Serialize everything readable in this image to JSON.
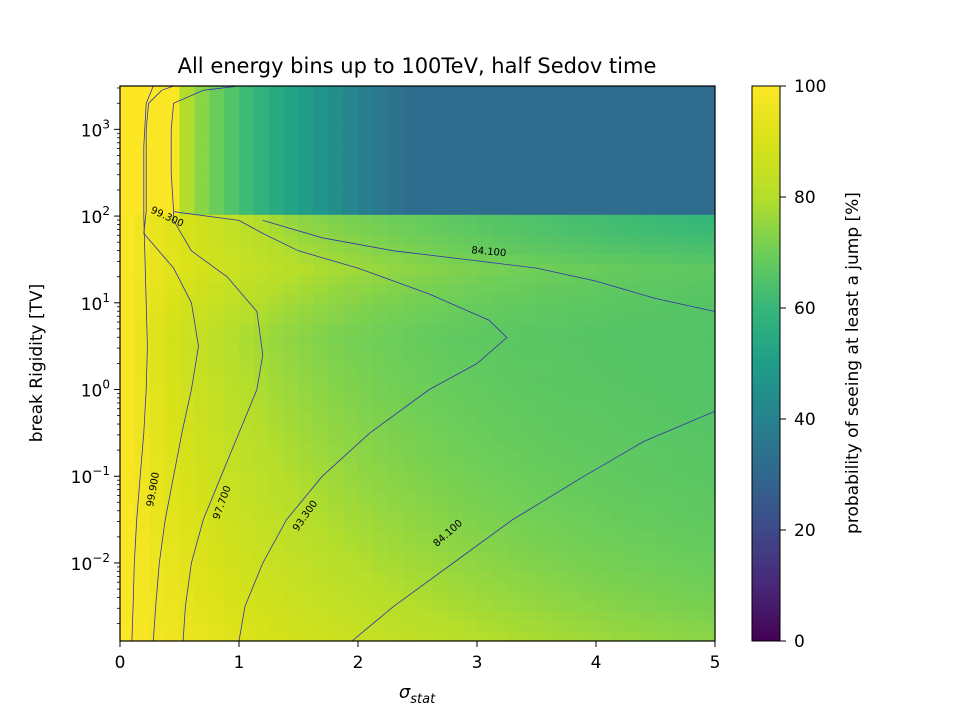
{
  "chart_data": {
    "type": "heatmap",
    "title": "All energy bins up to 100TeV, half Sedov time",
    "xlabel_main": "σ",
    "xlabel_sub": "stat",
    "ylabel": "break Rigidity [TV]",
    "xlim": [
      0,
      5
    ],
    "x_ticks": [
      0,
      1,
      2,
      3,
      4,
      5
    ],
    "x_tick_labels": [
      "0",
      "1",
      "2",
      "3",
      "4",
      "5"
    ],
    "y_scale": "log",
    "ylim_log10": [
      -2.9,
      3.5
    ],
    "y_ticks": [
      {
        "base": "10",
        "exp": "−2",
        "log10": -2
      },
      {
        "base": "10",
        "exp": "−1",
        "log10": -1
      },
      {
        "base": "10",
        "exp": "0",
        "log10": 0
      },
      {
        "base": "10",
        "exp": "1",
        "log10": 1
      },
      {
        "base": "10",
        "exp": "2",
        "log10": 2
      },
      {
        "base": "10",
        "exp": "3",
        "log10": 3
      }
    ],
    "colormap": "viridis",
    "colorbar": {
      "label": "probability of seeing at least a jump [%]",
      "range": [
        0,
        100
      ],
      "ticks": [
        "0",
        "20",
        "40",
        "60",
        "80",
        "100"
      ]
    },
    "contour_color": "#3333aa",
    "contour_levels": [
      "99.900",
      "99.300",
      "97.700",
      "93.300",
      "84.100"
    ],
    "contours": [
      {
        "level": 99.9,
        "label": "99.900",
        "points": [
          [
            0.1,
            -2.9
          ],
          [
            0.11,
            -2.5
          ],
          [
            0.12,
            -2.0
          ],
          [
            0.14,
            -1.5
          ],
          [
            0.17,
            -1.0
          ],
          [
            0.2,
            -0.5
          ],
          [
            0.22,
            0.0
          ],
          [
            0.23,
            0.5
          ],
          [
            0.22,
            1.0
          ],
          [
            0.21,
            1.5
          ],
          [
            0.2,
            2.0
          ],
          [
            0.2,
            2.8
          ],
          [
            0.22,
            3.3
          ],
          [
            0.28,
            3.5
          ]
        ]
      },
      {
        "level": 99.3,
        "label": "99.300",
        "points": [
          [
            0.28,
            -2.9
          ],
          [
            0.3,
            -2.5
          ],
          [
            0.33,
            -2.0
          ],
          [
            0.38,
            -1.5
          ],
          [
            0.45,
            -1.0
          ],
          [
            0.52,
            -0.5
          ],
          [
            0.6,
            0.0
          ],
          [
            0.66,
            0.5
          ],
          [
            0.6,
            1.0
          ],
          [
            0.45,
            1.4
          ],
          [
            0.2,
            1.8
          ],
          [
            0.22,
            2.05
          ],
          [
            0.22,
            2.5
          ],
          [
            0.22,
            3.0
          ],
          [
            0.24,
            3.3
          ],
          [
            0.35,
            3.45
          ],
          [
            0.45,
            3.5
          ]
        ]
      },
      {
        "level": 97.7,
        "label": "97.700",
        "points": [
          [
            0.53,
            -2.9
          ],
          [
            0.55,
            -2.5
          ],
          [
            0.6,
            -2.0
          ],
          [
            0.7,
            -1.5
          ],
          [
            0.85,
            -1.0
          ],
          [
            1.0,
            -0.5
          ],
          [
            1.15,
            0.0
          ],
          [
            1.2,
            0.4
          ],
          [
            1.15,
            0.9
          ],
          [
            0.9,
            1.3
          ],
          [
            0.6,
            1.6
          ],
          [
            0.45,
            1.95
          ],
          [
            0.45,
            2.05
          ],
          [
            0.43,
            2.5
          ],
          [
            0.43,
            3.0
          ],
          [
            0.45,
            3.3
          ],
          [
            0.7,
            3.45
          ],
          [
            1.0,
            3.5
          ]
        ]
      },
      {
        "level": 93.3,
        "label": "93.300",
        "points": [
          [
            1.0,
            -2.9
          ],
          [
            1.05,
            -2.5
          ],
          [
            1.2,
            -2.0
          ],
          [
            1.4,
            -1.5
          ],
          [
            1.7,
            -1.0
          ],
          [
            2.1,
            -0.5
          ],
          [
            2.6,
            0.0
          ],
          [
            3.0,
            0.3
          ],
          [
            3.25,
            0.6
          ],
          [
            3.1,
            0.8
          ],
          [
            2.6,
            1.1
          ],
          [
            2.0,
            1.4
          ],
          [
            1.5,
            1.6
          ],
          [
            1.2,
            1.8
          ],
          [
            1.0,
            1.95
          ],
          [
            0.45,
            2.05
          ]
        ]
      },
      {
        "level": 84.1,
        "label": "84.100",
        "points": [
          [
            1.95,
            -2.9
          ],
          [
            2.3,
            -2.5
          ],
          [
            2.8,
            -2.0
          ],
          [
            3.3,
            -1.5
          ],
          [
            3.9,
            -1.0
          ],
          [
            4.4,
            -0.6
          ],
          [
            5.0,
            -0.25
          ]
        ]
      },
      {
        "level": 84.1,
        "label": "84.100",
        "points": [
          [
            1.2,
            1.95
          ],
          [
            1.7,
            1.75
          ],
          [
            2.3,
            1.6
          ],
          [
            2.9,
            1.5
          ],
          [
            3.5,
            1.4
          ],
          [
            4.0,
            1.25
          ],
          [
            4.5,
            1.05
          ],
          [
            5.0,
            0.9
          ]
        ]
      }
    ]
  }
}
